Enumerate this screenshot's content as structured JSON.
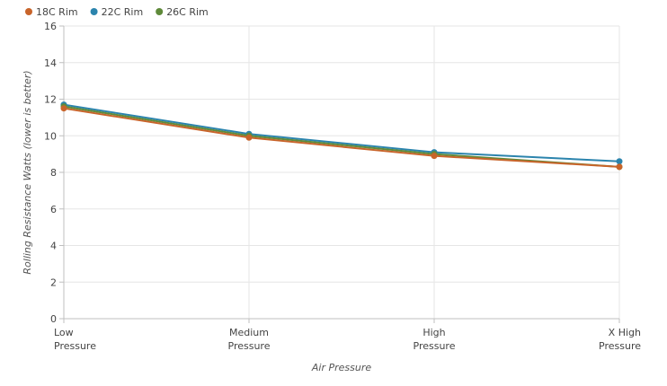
{
  "chart_data": {
    "type": "line",
    "title": "",
    "xlabel": "Air Pressure",
    "ylabel": "Rolling Resistance Watts (lower is better)",
    "categories": [
      [
        "Low",
        "Pressure"
      ],
      [
        "Medium",
        "Pressure"
      ],
      [
        "High",
        "Pressure"
      ],
      [
        "X High",
        "Pressure"
      ]
    ],
    "ylim": [
      0,
      16
    ],
    "yticks": [
      0,
      2,
      4,
      6,
      8,
      10,
      12,
      14,
      16
    ],
    "grid": true,
    "legend_position": "top-left",
    "series": [
      {
        "name": "18C Rim",
        "color": "#c8642a",
        "values": [
          11.5,
          9.9,
          8.9,
          8.3
        ]
      },
      {
        "name": "22C Rim",
        "color": "#2b84ad",
        "values": [
          11.7,
          10.1,
          9.1,
          8.6
        ]
      },
      {
        "name": "26C Rim",
        "color": "#5f8a3a",
        "values": [
          11.6,
          10.0,
          9.0,
          8.3
        ]
      }
    ]
  }
}
